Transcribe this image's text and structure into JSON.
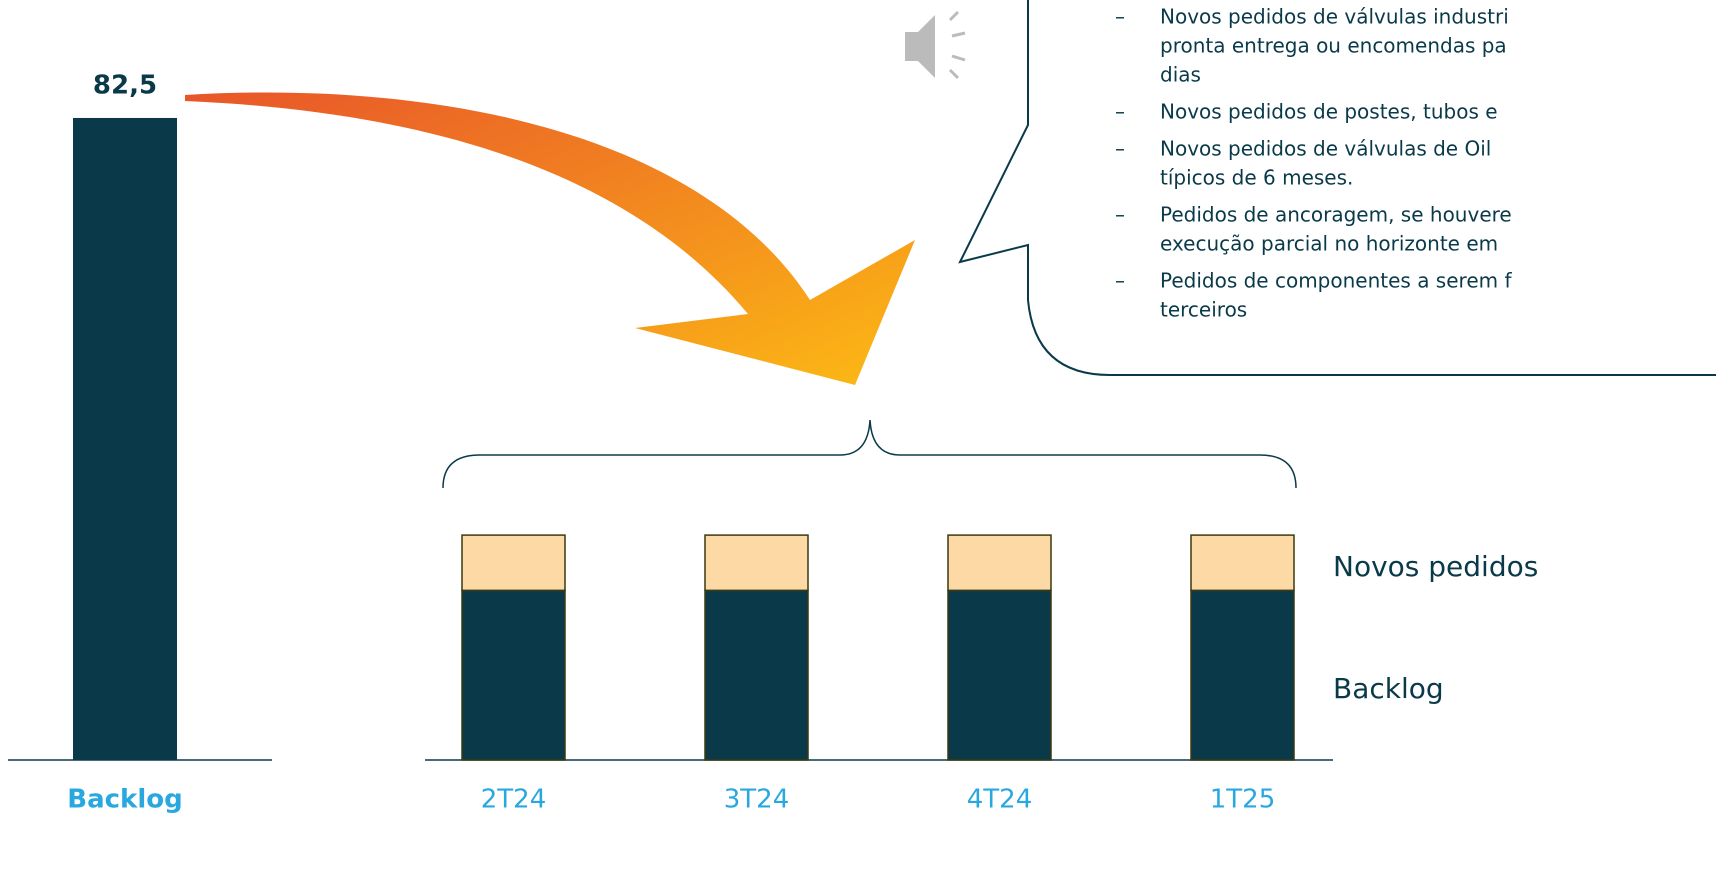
{
  "chart_data": [
    {
      "type": "bar",
      "categories": [
        "Backlog"
      ],
      "values": [
        82.5
      ],
      "value_labels": [
        "82,5"
      ],
      "color": "#0a3a4a",
      "ylim": [
        0,
        90
      ]
    },
    {
      "type": "stacked_bar",
      "categories": [
        "2T24",
        "3T24",
        "4T24",
        "1T25"
      ],
      "series": [
        {
          "name": "Backlog",
          "color": "#0a3a4a",
          "values": [
            21.8,
            21.8,
            21.8,
            21.8
          ]
        },
        {
          "name": "Novos pedidos",
          "color": "#fcd9a5",
          "values": [
            7.1,
            7.1,
            7.1,
            7.1
          ]
        }
      ],
      "ylim": [
        0,
        90
      ]
    }
  ],
  "callout": {
    "items": [
      [
        "Novos pedidos de válvulas industri",
        "pronta entrega ou encomendas pa",
        "dias"
      ],
      [
        "Novos pedidos de postes, tubos e"
      ],
      [
        "Novos pedidos de válvulas de Oil",
        "típicos de 6 meses."
      ],
      [
        "Pedidos de ancoragem, se houvere",
        "execução parcial no horizonte em"
      ],
      [
        "Pedidos de componentes a serem f",
        "terceiros"
      ]
    ]
  }
}
